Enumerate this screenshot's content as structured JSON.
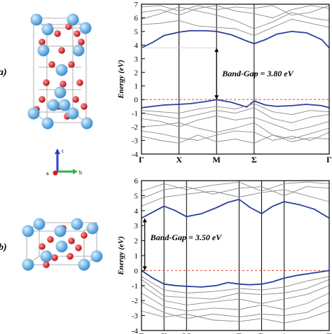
{
  "panels": [
    {
      "id": "a",
      "label": "a)"
    },
    {
      "id": "b",
      "label": "b)"
    }
  ],
  "axes_triad": {
    "c": "c",
    "a": "a",
    "b": "b"
  },
  "chart_data": [
    {
      "type": "line",
      "ylabel": "Energy (eV)",
      "ylim": [
        -4,
        7
      ],
      "yticks": [
        -4,
        -3,
        -2,
        -1,
        0,
        1,
        2,
        3,
        4,
        5,
        6,
        7
      ],
      "x_labels": [
        "Γ",
        "X",
        "M",
        "Σ",
        "Γ"
      ],
      "x_positions": [
        0,
        1,
        2,
        3,
        5
      ],
      "xlim": [
        0,
        5
      ],
      "fermi_level": 0,
      "annotation": "Band-Gap = 3.80 eV",
      "gap": {
        "x": 2.0,
        "vbm": 0,
        "cbm": 3.8
      },
      "highlight_color": "#2a3f9e",
      "band_color": "#8a8a8a",
      "series": [
        {
          "role": "conduction-band-minimum",
          "x": [
            0,
            0.3,
            0.6,
            1,
            1.3,
            1.7,
            2,
            2.4,
            2.8,
            3,
            3.3,
            3.6,
            4,
            4.4,
            4.8,
            5
          ],
          "values": [
            3.8,
            4.2,
            4.7,
            4.95,
            5.05,
            5.05,
            5.0,
            4.75,
            4.3,
            4.1,
            4.4,
            4.8,
            5.0,
            4.9,
            4.4,
            3.8
          ]
        },
        {
          "role": "valence-band-maximum",
          "x": [
            0,
            0.3,
            0.6,
            1,
            1.3,
            1.7,
            2,
            2.4,
            2.8,
            3,
            3.3,
            3.6,
            4,
            4.4,
            4.8,
            5
          ],
          "values": [
            -0.6,
            -0.5,
            -0.4,
            -0.35,
            -0.3,
            -0.15,
            0.0,
            -0.2,
            -0.55,
            -0.1,
            -0.4,
            -0.5,
            -0.45,
            -0.35,
            -0.45,
            -0.6
          ]
        },
        {
          "x": [
            0,
            0.5,
            1,
            1.5,
            2,
            2.5,
            3,
            3.5,
            4,
            4.5,
            5
          ],
          "values": [
            5.5,
            5.6,
            5.8,
            5.4,
            5.3,
            5.2,
            4.7,
            5.3,
            5.9,
            5.6,
            5.3
          ]
        },
        {
          "x": [
            0,
            0.5,
            1,
            1.5,
            2,
            2.5,
            3,
            3.5,
            4,
            4.5,
            5
          ],
          "values": [
            5.9,
            6.3,
            6.8,
            6.5,
            6.2,
            5.8,
            5.2,
            5.7,
            6.4,
            6.0,
            5.8
          ]
        },
        {
          "x": [
            0,
            0.5,
            1,
            1.5,
            2,
            2.5,
            3,
            3.5,
            4,
            4.5,
            5
          ],
          "values": [
            6.4,
            6.6,
            6.2,
            6.7,
            6.9,
            6.5,
            6.3,
            6.0,
            6.6,
            6.9,
            6.7
          ]
        },
        {
          "x": [
            0,
            0.5,
            1,
            1.5,
            2,
            2.5,
            3,
            3.5,
            4,
            4.5,
            5
          ],
          "values": [
            6.8,
            6.9,
            6.5,
            6.9,
            6.6,
            6.8,
            6.7,
            6.9,
            6.2,
            6.4,
            6.9
          ]
        },
        {
          "x": [
            0,
            0.5,
            1,
            1.5,
            2,
            2.5,
            3,
            3.5,
            4,
            4.5,
            5
          ],
          "values": [
            -0.8,
            -0.9,
            -1.0,
            -0.7,
            -0.5,
            -0.7,
            -0.3,
            -0.9,
            -1.1,
            -0.8,
            -0.9
          ]
        },
        {
          "x": [
            0,
            0.5,
            1,
            1.5,
            2,
            2.5,
            3,
            3.5,
            4,
            4.5,
            5
          ],
          "values": [
            -1.0,
            -1.2,
            -1.4,
            -1.1,
            -0.8,
            -1.0,
            -0.6,
            -1.4,
            -1.7,
            -1.3,
            -1.1
          ]
        },
        {
          "x": [
            0,
            0.5,
            1,
            1.5,
            2,
            2.5,
            3,
            3.5,
            4,
            4.5,
            5
          ],
          "values": [
            -1.4,
            -1.6,
            -2.0,
            -1.5,
            -1.2,
            -1.5,
            -1.3,
            -1.8,
            -2.3,
            -2.0,
            -1.6
          ]
        },
        {
          "x": [
            0,
            0.5,
            1,
            1.5,
            2,
            2.5,
            3,
            3.5,
            4,
            4.5,
            5
          ],
          "values": [
            -2.0,
            -1.9,
            -1.7,
            -2.1,
            -2.4,
            -2.1,
            -1.7,
            -2.6,
            -2.9,
            -2.5,
            -2.1
          ]
        },
        {
          "x": [
            0,
            0.5,
            1,
            1.5,
            2,
            2.5,
            3,
            3.5,
            4,
            4.5,
            5
          ],
          "values": [
            -2.3,
            -2.5,
            -2.8,
            -3.0,
            -2.6,
            -2.3,
            -2.4,
            -3.0,
            -2.7,
            -3.0,
            -2.4
          ]
        },
        {
          "x": [
            0,
            0.5,
            1,
            1.5,
            2,
            2.5,
            3,
            3.5,
            4,
            4.5,
            5
          ],
          "values": [
            -2.7,
            -3.0,
            -3.2,
            -2.6,
            -3.1,
            -2.9,
            -3.2,
            -2.6,
            -3.1,
            -2.8,
            -2.9
          ]
        }
      ]
    },
    {
      "type": "line",
      "ylabel": "Energy (eV)",
      "ylim": [
        -4,
        6
      ],
      "yticks": [
        -4,
        -3,
        -2,
        -1,
        0,
        1,
        2,
        3,
        4,
        5,
        6
      ],
      "x_labels": [
        "Γ",
        "X",
        "M",
        "Z",
        "R",
        "A",
        "Γ"
      ],
      "x_positions": [
        0,
        0.6,
        1.2,
        2.6,
        3.2,
        3.8,
        5
      ],
      "xlim": [
        0,
        5
      ],
      "fermi_level": 0,
      "annotation": "Band-Gap = 3.50 eV",
      "gap": {
        "x": 0.05,
        "vbm": 0,
        "cbm": 3.5
      },
      "highlight_color": "#2a3f9e",
      "band_color": "#8a8a8a",
      "series": [
        {
          "role": "conduction-band-minimum",
          "x": [
            0,
            0.3,
            0.6,
            0.9,
            1.2,
            1.6,
            2.0,
            2.3,
            2.6,
            2.9,
            3.2,
            3.5,
            3.8,
            4.2,
            4.6,
            5
          ],
          "values": [
            3.5,
            3.9,
            4.3,
            4.0,
            3.6,
            3.8,
            4.2,
            4.55,
            4.75,
            4.2,
            3.8,
            4.3,
            4.6,
            4.4,
            4.1,
            3.5
          ]
        },
        {
          "role": "valence-band-maximum",
          "x": [
            0,
            0.3,
            0.6,
            0.9,
            1.2,
            1.6,
            2.0,
            2.3,
            2.6,
            2.9,
            3.2,
            3.5,
            3.8,
            4.2,
            4.6,
            5
          ],
          "values": [
            0.0,
            -0.5,
            -0.9,
            -1.0,
            -1.05,
            -1.1,
            -1.0,
            -0.8,
            -0.9,
            -0.95,
            -0.9,
            -0.75,
            -0.5,
            -0.3,
            -0.15,
            0.0
          ]
        },
        {
          "x": [
            0,
            0.6,
            1.2,
            1.9,
            2.6,
            3.2,
            3.8,
            4.4,
            5
          ],
          "values": [
            4.3,
            4.9,
            5.1,
            5.3,
            4.9,
            5.2,
            5.4,
            5.0,
            4.6
          ]
        },
        {
          "x": [
            0,
            0.6,
            1.2,
            1.9,
            2.6,
            3.2,
            3.8,
            4.4,
            5
          ],
          "values": [
            4.8,
            5.4,
            5.6,
            5.1,
            5.5,
            5.6,
            5.0,
            5.6,
            5.5
          ]
        },
        {
          "x": [
            0,
            0.6,
            1.2,
            1.9,
            2.6,
            3.2,
            3.8,
            4.4,
            5
          ],
          "values": [
            5.3,
            5.8,
            5.4,
            5.7,
            5.9,
            5.3,
            5.8,
            5.9,
            5.8
          ]
        },
        {
          "x": [
            0,
            0.6,
            1.2,
            1.9,
            2.6,
            3.2,
            3.8,
            4.4,
            5
          ],
          "values": [
            -0.4,
            -1.3,
            -1.5,
            -1.4,
            -1.2,
            -1.3,
            -1.1,
            -0.7,
            -0.4
          ]
        },
        {
          "x": [
            0,
            0.6,
            1.2,
            1.9,
            2.6,
            3.2,
            3.8,
            4.4,
            5
          ],
          "values": [
            -0.6,
            -1.7,
            -1.8,
            -1.9,
            -1.5,
            -1.6,
            -1.5,
            -1.2,
            -0.6
          ]
        },
        {
          "x": [
            0,
            0.6,
            1.2,
            1.9,
            2.6,
            3.2,
            3.8,
            4.4,
            5
          ],
          "values": [
            -1.0,
            -2.0,
            -2.3,
            -2.1,
            -1.9,
            -2.2,
            -1.9,
            -1.6,
            -1.0
          ]
        },
        {
          "x": [
            0,
            0.6,
            1.2,
            1.9,
            2.6,
            3.2,
            3.8,
            4.4,
            5
          ],
          "values": [
            -1.5,
            -2.4,
            -2.7,
            -2.5,
            -2.6,
            -2.3,
            -2.6,
            -2.2,
            -1.5
          ]
        },
        {
          "x": [
            0,
            0.6,
            1.2,
            1.9,
            2.6,
            3.2,
            3.8,
            4.4,
            5
          ],
          "values": [
            -2.1,
            -2.8,
            -3.2,
            -2.9,
            -3.1,
            -2.9,
            -3.0,
            -2.8,
            -2.1
          ]
        },
        {
          "x": [
            0,
            0.6,
            1.2,
            1.9,
            2.6,
            3.2,
            3.8,
            4.4,
            5
          ],
          "values": [
            -2.7,
            -3.1,
            -2.9,
            -3.3,
            -3.4,
            -3.2,
            -3.5,
            -3.2,
            -2.7
          ]
        }
      ]
    }
  ]
}
